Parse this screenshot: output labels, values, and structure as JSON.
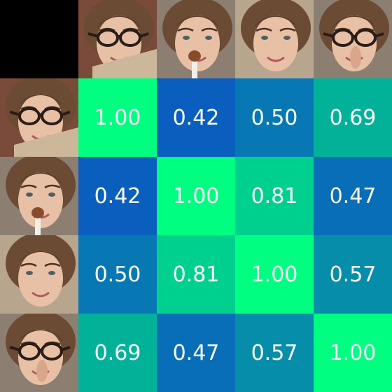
{
  "chart_data": {
    "type": "heatmap",
    "title": "",
    "xlabel": "",
    "ylabel": "",
    "row_images": [
      "face-glasses-book",
      "face-brush",
      "face-smile",
      "face-glasses-finger"
    ],
    "col_images": [
      "face-glasses-book",
      "face-brush",
      "face-smile",
      "face-glasses-finger"
    ],
    "matrix": [
      [
        1.0,
        0.42,
        0.5,
        0.69
      ],
      [
        0.42,
        1.0,
        0.81,
        0.47
      ],
      [
        0.5,
        0.81,
        1.0,
        0.57
      ],
      [
        0.69,
        0.47,
        0.57,
        1.0
      ]
    ],
    "labels": [
      [
        "1.00",
        "0.42",
        "0.50",
        "0.69"
      ],
      [
        "0.42",
        "1.00",
        "0.81",
        "0.47"
      ],
      [
        "0.50",
        "0.81",
        "1.00",
        "0.57"
      ],
      [
        "0.69",
        "0.47",
        "0.57",
        "1.00"
      ]
    ],
    "vmin": 0.42,
    "vmax": 1.0,
    "colormap": {
      "low": "#0a5fbe",
      "mid": "#00b896",
      "high": "#00ff80"
    },
    "text_color": "#ffffff"
  }
}
